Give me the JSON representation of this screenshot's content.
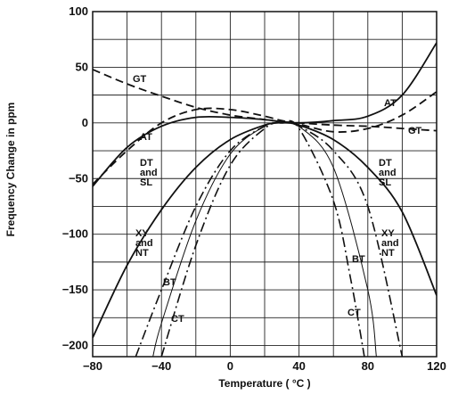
{
  "chart_data": {
    "type": "line",
    "title": "",
    "xlabel": "Temperature ( °C )",
    "ylabel": "Frequency Change in ppm",
    "xlim": [
      -80,
      120
    ],
    "ylim": [
      -210,
      100
    ],
    "grid": true,
    "legend": "none",
    "x_ticks": [
      -80,
      -40,
      0,
      40,
      80,
      120
    ],
    "y_ticks": [
      100,
      50,
      0,
      -50,
      -100,
      -150,
      -200
    ],
    "series": [
      {
        "name": "GT",
        "style": "dashed",
        "x": [
          -80,
          -60,
          -40,
          -20,
          0,
          20,
          30,
          40,
          60,
          80,
          100,
          120
        ],
        "y": [
          48,
          35,
          24,
          14,
          7,
          3,
          1,
          0,
          -2,
          -3,
          -5,
          -7
        ]
      },
      {
        "name": "AT",
        "style": "solid",
        "x": [
          -80,
          -60,
          -40,
          -20,
          0,
          20,
          30,
          40,
          60,
          80,
          100,
          120
        ],
        "y": [
          -57,
          -22,
          -3,
          5,
          5,
          3,
          1,
          0,
          2,
          6,
          25,
          72
        ]
      },
      {
        "name": "AT",
        "style": "dashed",
        "x": [
          -80,
          -60,
          -40,
          -20,
          0,
          20,
          30,
          40,
          60,
          80,
          100,
          120
        ],
        "y": [
          -55,
          -25,
          0,
          12,
          12,
          6,
          2,
          -1,
          -8,
          -5,
          7,
          28
        ]
      },
      {
        "name": "DT and SL",
        "style": "solid",
        "x": [
          -80,
          -60,
          -40,
          -20,
          0,
          20,
          30,
          40,
          60,
          80,
          100,
          120
        ],
        "y": [
          -193,
          -128,
          -78,
          -40,
          -15,
          -2,
          0,
          -2,
          -15,
          -40,
          -80,
          -155
        ]
      },
      {
        "name": "XY and NT",
        "style": "dash-dot",
        "x": [
          -55,
          -40,
          -20,
          0,
          20,
          30,
          40,
          60,
          80,
          100
        ],
        "y": [
          -210,
          -150,
          -75,
          -25,
          -3,
          0,
          -3,
          -25,
          -75,
          -210
        ]
      },
      {
        "name": "BT",
        "style": "solid-thin",
        "x": [
          -45,
          -40,
          -20,
          0,
          20,
          30,
          40,
          60,
          80,
          85
        ],
        "y": [
          -210,
          -180,
          -88,
          -28,
          -3,
          0,
          -3,
          -40,
          -150,
          -210
        ]
      },
      {
        "name": "CT",
        "style": "dash-dot",
        "x": [
          -40,
          -20,
          0,
          20,
          30,
          40,
          60,
          70,
          78
        ],
        "y": [
          -210,
          -110,
          -38,
          -5,
          0,
          -5,
          -70,
          -140,
          -210
        ]
      }
    ],
    "labels": {
      "gt": "GT",
      "at_solid": "AT",
      "at_dashed": "AT",
      "gt_right": "GT",
      "dt_left": [
        "DT",
        "and",
        "SL"
      ],
      "dt_right": [
        "DT",
        "and",
        "SL"
      ],
      "xy_left": [
        "XY",
        "and",
        "NT"
      ],
      "xy_right": [
        "XY",
        "and",
        "NT"
      ],
      "bt_left": "BT",
      "bt_right": "BT",
      "ct_left": "CT",
      "ct_right": "CT"
    }
  }
}
